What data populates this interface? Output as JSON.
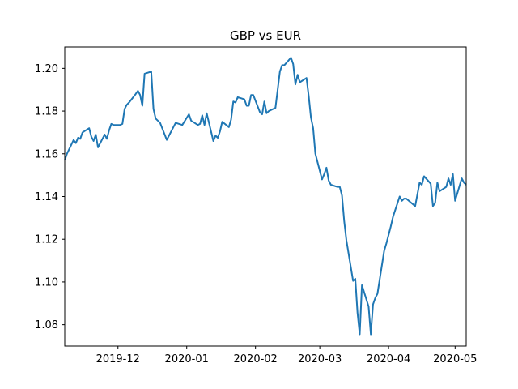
{
  "chart_data": {
    "type": "line",
    "title": "GBP vs EUR",
    "xlabel": "",
    "ylabel": "",
    "x_range": [
      "2019-11-07",
      "2020-05-06"
    ],
    "ylim": [
      1.07,
      1.21
    ],
    "grid": false,
    "legend": "none",
    "x_ticks": [
      {
        "date": "2019-12-01",
        "label": "2019-12"
      },
      {
        "date": "2020-01-01",
        "label": "2020-01"
      },
      {
        "date": "2020-02-01",
        "label": "2020-02"
      },
      {
        "date": "2020-03-01",
        "label": "2020-03"
      },
      {
        "date": "2020-04-01",
        "label": "2020-04"
      },
      {
        "date": "2020-05-01",
        "label": "2020-05"
      }
    ],
    "y_ticks": [
      {
        "value": 1.08,
        "label": "1.08"
      },
      {
        "value": 1.1,
        "label": "1.10"
      },
      {
        "value": 1.12,
        "label": "1.12"
      },
      {
        "value": 1.14,
        "label": "1.14"
      },
      {
        "value": 1.16,
        "label": "1.16"
      },
      {
        "value": 1.18,
        "label": "1.18"
      },
      {
        "value": 1.2,
        "label": "1.20"
      }
    ],
    "series": [
      {
        "color": "#1f77b4",
        "x": [
          "2019-11-07",
          "2019-11-08",
          "2019-11-11",
          "2019-11-12",
          "2019-11-13",
          "2019-11-14",
          "2019-11-15",
          "2019-11-18",
          "2019-11-19",
          "2019-11-20",
          "2019-11-21",
          "2019-11-22",
          "2019-11-25",
          "2019-11-26",
          "2019-11-27",
          "2019-11-28",
          "2019-11-29",
          "2019-12-02",
          "2019-12-03",
          "2019-12-04",
          "2019-12-05",
          "2019-12-06",
          "2019-12-09",
          "2019-12-10",
          "2019-12-11",
          "2019-12-12",
          "2019-12-13",
          "2019-12-16",
          "2019-12-17",
          "2019-12-18",
          "2019-12-19",
          "2019-12-20",
          "2019-12-23",
          "2019-12-27",
          "2019-12-30",
          "2020-01-02",
          "2020-01-03",
          "2020-01-06",
          "2020-01-07",
          "2020-01-08",
          "2020-01-09",
          "2020-01-10",
          "2020-01-13",
          "2020-01-14",
          "2020-01-15",
          "2020-01-16",
          "2020-01-17",
          "2020-01-20",
          "2020-01-21",
          "2020-01-22",
          "2020-01-23",
          "2020-01-24",
          "2020-01-27",
          "2020-01-28",
          "2020-01-29",
          "2020-01-30",
          "2020-01-31",
          "2020-02-03",
          "2020-02-04",
          "2020-02-05",
          "2020-02-06",
          "2020-02-07",
          "2020-02-10",
          "2020-02-11",
          "2020-02-12",
          "2020-02-13",
          "2020-02-14",
          "2020-02-17",
          "2020-02-18",
          "2020-02-19",
          "2020-02-20",
          "2020-02-21",
          "2020-02-24",
          "2020-02-25",
          "2020-02-26",
          "2020-02-27",
          "2020-02-28",
          "2020-03-02",
          "2020-03-03",
          "2020-03-04",
          "2020-03-05",
          "2020-03-06",
          "2020-03-09",
          "2020-03-10",
          "2020-03-11",
          "2020-03-12",
          "2020-03-13",
          "2020-03-16",
          "2020-03-17",
          "2020-03-18",
          "2020-03-19",
          "2020-03-20",
          "2020-03-23",
          "2020-03-24",
          "2020-03-25",
          "2020-03-26",
          "2020-03-27",
          "2020-03-30",
          "2020-03-31",
          "2020-04-01",
          "2020-04-02",
          "2020-04-03",
          "2020-04-06",
          "2020-04-07",
          "2020-04-08",
          "2020-04-09",
          "2020-04-13",
          "2020-04-14",
          "2020-04-15",
          "2020-04-16",
          "2020-04-17",
          "2020-04-20",
          "2020-04-21",
          "2020-04-22",
          "2020-04-23",
          "2020-04-24",
          "2020-04-27",
          "2020-04-28",
          "2020-04-29",
          "2020-04-30",
          "2020-05-01",
          "2020-05-04",
          "2020-05-05",
          "2020-05-06"
        ],
        "values": [
          1.157,
          1.16,
          1.1665,
          1.165,
          1.1675,
          1.167,
          1.17,
          1.172,
          1.168,
          1.166,
          1.169,
          1.163,
          1.169,
          1.167,
          1.171,
          1.174,
          1.1735,
          1.1735,
          1.174,
          1.181,
          1.183,
          1.184,
          1.188,
          1.1895,
          1.1875,
          1.1825,
          1.1975,
          1.1985,
          1.181,
          1.1765,
          1.1755,
          1.1745,
          1.1665,
          1.1745,
          1.1735,
          1.1785,
          1.1755,
          1.1735,
          1.174,
          1.178,
          1.1735,
          1.179,
          1.166,
          1.1685,
          1.1675,
          1.1705,
          1.175,
          1.1725,
          1.176,
          1.1845,
          1.184,
          1.1865,
          1.1855,
          1.1825,
          1.1825,
          1.1875,
          1.1875,
          1.1795,
          1.1785,
          1.1845,
          1.179,
          1.18,
          1.1815,
          1.19,
          1.1985,
          1.2015,
          1.2015,
          1.205,
          1.202,
          1.1925,
          1.197,
          1.1935,
          1.1955,
          1.187,
          1.177,
          1.172,
          1.16,
          1.148,
          1.1505,
          1.1535,
          1.1475,
          1.1455,
          1.1445,
          1.1445,
          1.1405,
          1.1285,
          1.1195,
          1.1005,
          1.1015,
          1.0855,
          1.0755,
          1.0985,
          1.0885,
          1.0755,
          1.0895,
          1.0925,
          1.0945,
          1.1145,
          1.118,
          1.122,
          1.126,
          1.1305,
          1.14,
          1.138,
          1.139,
          1.139,
          1.1355,
          1.141,
          1.1465,
          1.1455,
          1.1495,
          1.146,
          1.1355,
          1.137,
          1.1465,
          1.1425,
          1.1445,
          1.1485,
          1.1455,
          1.1505,
          1.138,
          1.1485,
          1.1465,
          1.1455
        ]
      }
    ]
  }
}
